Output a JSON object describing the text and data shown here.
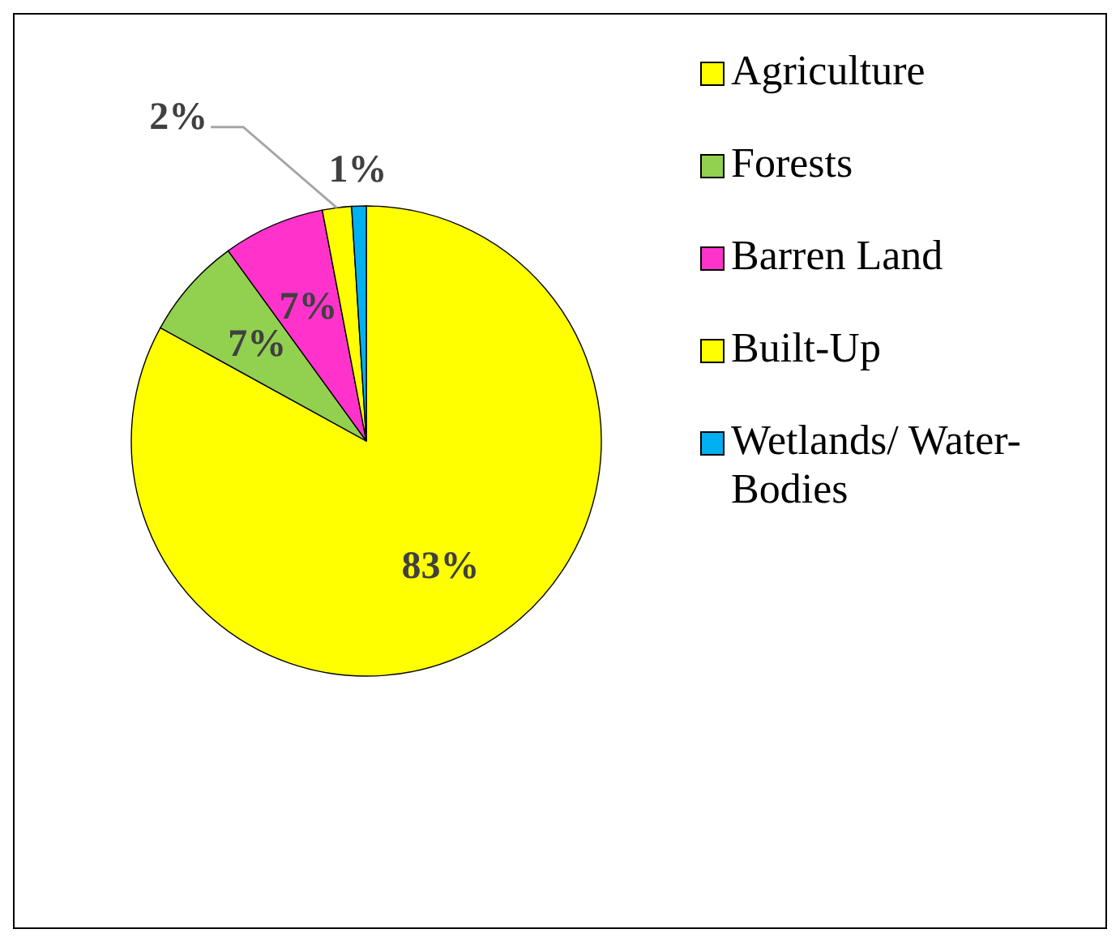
{
  "chart_data": {
    "type": "pie",
    "categories": [
      "Agriculture",
      "Forests",
      "Barren Land",
      "Built-Up",
      "Wetlands/ Water-Bodies"
    ],
    "values": [
      83,
      7,
      7,
      2,
      1
    ],
    "colors": [
      "#ffff00",
      "#92d050",
      "#ff33cc",
      "#ffff00",
      "#00b0f0"
    ],
    "value_labels": [
      "83%",
      "7%",
      "7%",
      "2%",
      "1%"
    ],
    "legend": "right"
  }
}
